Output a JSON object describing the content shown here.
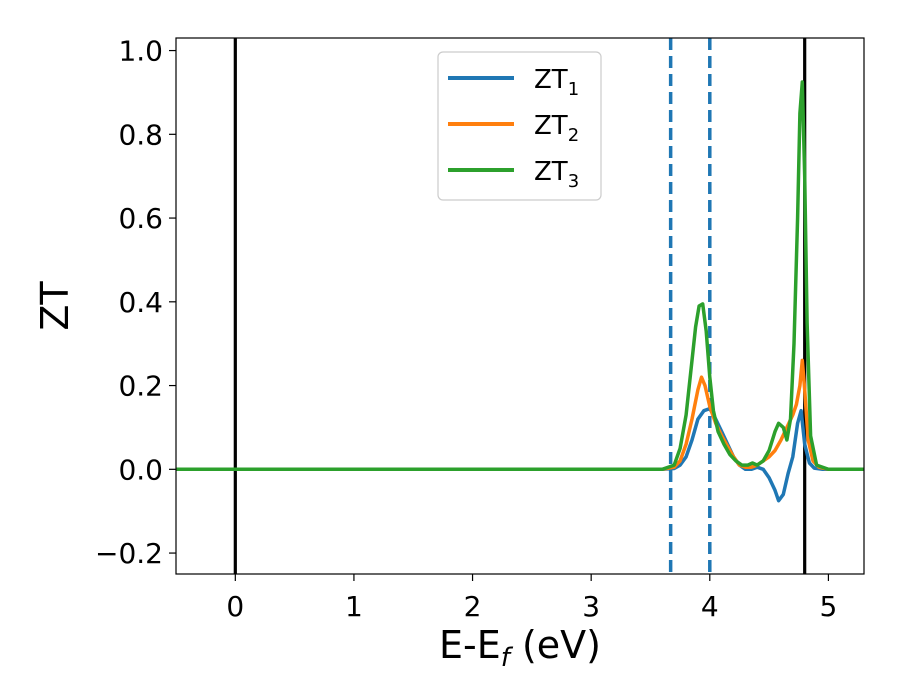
{
  "chart_data": {
    "type": "line",
    "xlabel": {
      "base": "E-E",
      "sub": "f",
      "suffix": " (eV)"
    },
    "ylabel": "ZT",
    "xlim": [
      -0.5,
      5.3
    ],
    "ylim": [
      -0.25,
      1.03
    ],
    "xticks": [
      0,
      1,
      2,
      3,
      4,
      5
    ],
    "xtick_labels": [
      "0",
      "1",
      "2",
      "3",
      "4",
      "5"
    ],
    "yticks": [
      -0.2,
      0.0,
      0.2,
      0.4,
      0.6,
      0.8,
      1.0
    ],
    "ytick_labels": [
      "−0.2",
      "0.0",
      "0.2",
      "0.4",
      "0.6",
      "0.8",
      "1.0"
    ],
    "grid": false,
    "legend_position": "top-center",
    "vlines": [
      {
        "x": 0.0,
        "style": "solid",
        "color": "#000000"
      },
      {
        "x": 4.8,
        "style": "solid",
        "color": "#000000"
      },
      {
        "x": 3.67,
        "style": "dashed",
        "color": "#1f77b4"
      },
      {
        "x": 4.0,
        "style": "dashed",
        "color": "#1f77b4"
      }
    ],
    "series": [
      {
        "name": "ZT",
        "name_sub": "1",
        "color": "#1f77b4",
        "x": [
          -0.5,
          3.6,
          3.7,
          3.75,
          3.8,
          3.85,
          3.9,
          3.95,
          4.0,
          4.05,
          4.1,
          4.15,
          4.2,
          4.25,
          4.3,
          4.35,
          4.4,
          4.45,
          4.5,
          4.55,
          4.58,
          4.62,
          4.66,
          4.7,
          4.74,
          4.77,
          4.8,
          4.84,
          4.88,
          4.95,
          5.3
        ],
        "y": [
          0.0,
          0.0,
          0.002,
          0.01,
          0.03,
          0.07,
          0.12,
          0.14,
          0.145,
          0.12,
          0.09,
          0.06,
          0.03,
          0.01,
          0.0,
          0.0,
          0.005,
          0.0,
          -0.02,
          -0.05,
          -0.075,
          -0.06,
          -0.01,
          0.03,
          0.11,
          0.14,
          0.06,
          0.015,
          0.003,
          0.0,
          0.0
        ]
      },
      {
        "name": "ZT",
        "name_sub": "2",
        "color": "#ff7f0e",
        "x": [
          -0.5,
          3.6,
          3.7,
          3.75,
          3.8,
          3.85,
          3.9,
          3.93,
          3.96,
          4.0,
          4.05,
          4.1,
          4.15,
          4.2,
          4.25,
          4.3,
          4.35,
          4.4,
          4.45,
          4.5,
          4.55,
          4.6,
          4.65,
          4.7,
          4.73,
          4.76,
          4.78,
          4.8,
          4.83,
          4.87,
          4.92,
          5.0,
          5.3
        ],
        "y": [
          0.0,
          0.0,
          0.005,
          0.02,
          0.06,
          0.12,
          0.19,
          0.22,
          0.2,
          0.15,
          0.11,
          0.08,
          0.055,
          0.03,
          0.01,
          0.005,
          0.005,
          0.01,
          0.02,
          0.03,
          0.045,
          0.07,
          0.1,
          0.13,
          0.155,
          0.2,
          0.26,
          0.19,
          0.07,
          0.02,
          0.005,
          0.0,
          0.0
        ]
      },
      {
        "name": "ZT",
        "name_sub": "3",
        "color": "#2ca02c",
        "x": [
          -0.5,
          3.6,
          3.7,
          3.75,
          3.8,
          3.85,
          3.88,
          3.91,
          3.94,
          3.97,
          4.0,
          4.03,
          4.07,
          4.12,
          4.17,
          4.22,
          4.27,
          4.32,
          4.36,
          4.4,
          4.45,
          4.5,
          4.55,
          4.58,
          4.62,
          4.65,
          4.68,
          4.71,
          4.74,
          4.76,
          4.78,
          4.8,
          4.82,
          4.85,
          4.9,
          5.0,
          5.3
        ],
        "y": [
          0.0,
          0.0,
          0.01,
          0.05,
          0.13,
          0.26,
          0.34,
          0.39,
          0.395,
          0.33,
          0.22,
          0.14,
          0.09,
          0.06,
          0.035,
          0.02,
          0.01,
          0.01,
          0.015,
          0.01,
          0.02,
          0.045,
          0.09,
          0.11,
          0.1,
          0.07,
          0.12,
          0.3,
          0.6,
          0.85,
          0.925,
          0.7,
          0.35,
          0.08,
          0.01,
          0.0,
          0.0
        ]
      }
    ]
  }
}
